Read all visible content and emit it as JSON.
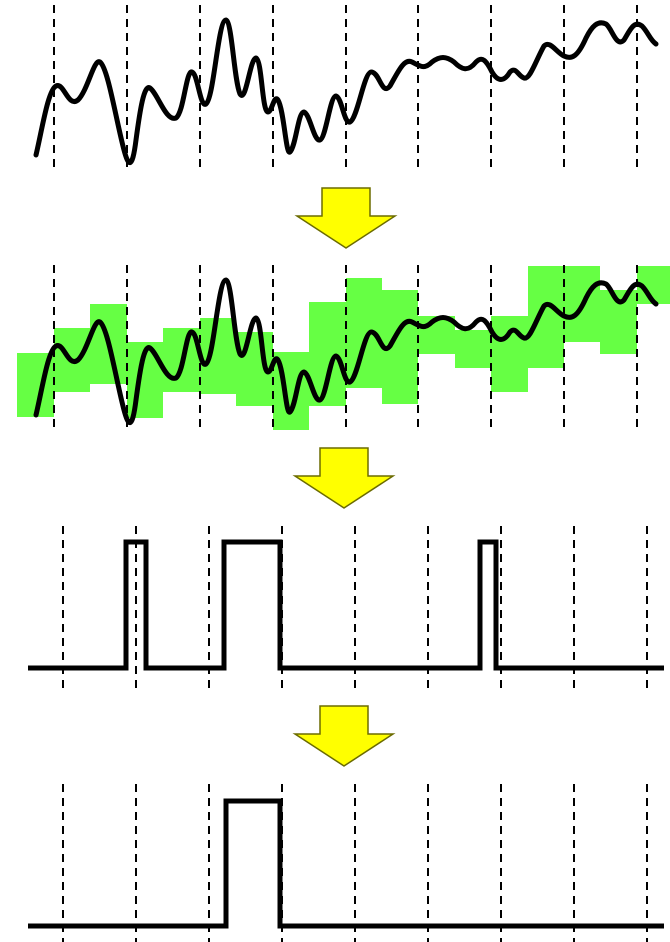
{
  "colors": {
    "background": "#ffffff",
    "line": "#000000",
    "band": "#66ff44",
    "arrow_fill": "#ffff00",
    "arrow_stroke": "#6b6b00"
  },
  "arrow_shape": "down-block-arrow",
  "panels": [
    {
      "name": "raw-signal",
      "elements": [
        "guide-lines",
        "noisy-signal"
      ]
    },
    {
      "name": "signal-with-adaptive-band",
      "elements": [
        "guide-lines",
        "step-band",
        "noisy-signal"
      ]
    },
    {
      "name": "detected-pulses",
      "elements": [
        "guide-lines",
        "binary-pulse-train"
      ],
      "pulse_count": 3
    },
    {
      "name": "filtered-pulse",
      "elements": [
        "guide-lines",
        "binary-pulse-train"
      ],
      "pulse_count": 1
    }
  ],
  "transitions": 3
}
